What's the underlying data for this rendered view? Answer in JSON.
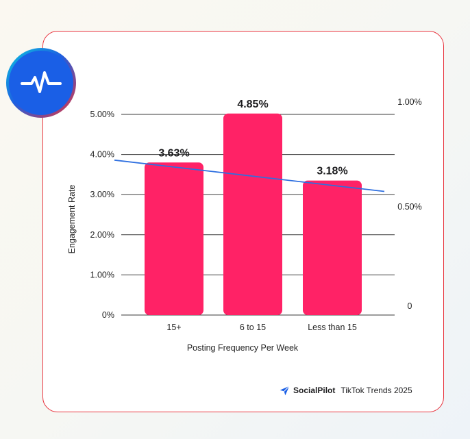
{
  "badge": {
    "icon": "pulse-icon"
  },
  "brand": {
    "logo": "socialpilot-logo-icon",
    "name": "SocialPilot",
    "tagline": "TikTok Trends 2025"
  },
  "colors": {
    "bar": "#ff2266",
    "trend": "#2e6fe0",
    "frame": "#e8323c",
    "badge": "#1a5fe6"
  },
  "chart_data": {
    "type": "bar",
    "categories": [
      "15+",
      "6 to 15",
      "Less than 15"
    ],
    "values": [
      3.63,
      4.85,
      3.18
    ],
    "value_labels": [
      "3.63%",
      "4.85%",
      "3.18%"
    ],
    "xlabel": "Posting Frequency Per Week",
    "ylabel": "Engagement Rate",
    "ylim": [
      0,
      5
    ],
    "y_ticks": [
      "0%",
      "1.00%",
      "2.00%",
      "3.00%",
      "4.00%",
      "5.00%"
    ],
    "y2_ticks": [
      "0",
      "0.50%",
      "1.00%"
    ],
    "grid": true,
    "trendline": {
      "start": 3.86,
      "end": 3.08
    }
  }
}
